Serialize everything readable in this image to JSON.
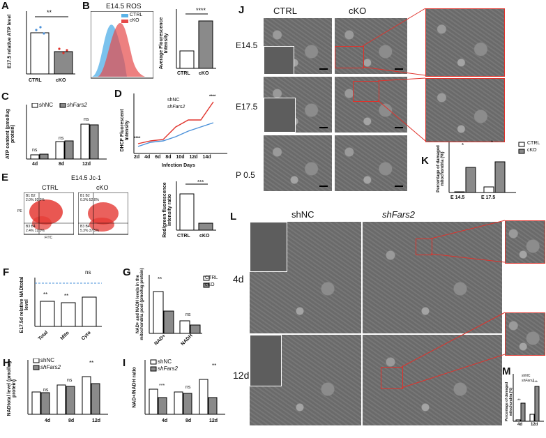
{
  "panels": {
    "A": {
      "label": "A",
      "ylabel": "E17.5 relative ATP level",
      "sig": "**",
      "categories": [
        "CTRL",
        "cKO"
      ],
      "values": [
        2.5,
        1.4
      ]
    },
    "B": {
      "label": "B",
      "title": "E14.5 ROS",
      "legend": [
        "CTRL",
        "cKO"
      ],
      "bar_ylabel": "Average Flourescence Intensity",
      "sig": "****",
      "categories": [
        "CTRL",
        "cKO"
      ]
    },
    "C": {
      "label": "C",
      "legend": [
        "shNC",
        "shFars2"
      ],
      "ylabel": "ATP content (pmol/ug protein)",
      "categories": [
        "4d",
        "8d",
        "12d"
      ],
      "yticks": [
        "0",
        "1",
        "2",
        "3",
        "4"
      ],
      "sig": [
        "ns",
        "ns",
        "ns"
      ]
    },
    "D": {
      "label": "D",
      "legend": [
        "shNC",
        "shFars2"
      ],
      "ylabel": "DHCF Fluorescent Intensity",
      "xlabel": "Infection Days",
      "xticks": [
        "2d",
        "4d",
        "6d",
        "8d",
        "10d",
        "12d",
        "14d"
      ],
      "yticks": [
        "0",
        "500",
        "1000",
        "1500",
        "2000"
      ],
      "sig": [
        "****",
        "**",
        "****",
        "****",
        "**",
        "****"
      ]
    },
    "E": {
      "label": "E",
      "title": "E14.5 Jc-1",
      "subtitles": [
        "CTRL",
        "cKO"
      ],
      "quad_ctrl": [
        "B1",
        "B2",
        "2.0%",
        "92.5%",
        "B3",
        "B4",
        "2.4%",
        "12.0%"
      ],
      "quad_cko": [
        "B1",
        "B2",
        "0.3%",
        "52.0%",
        "B3",
        "B4",
        "5.3%",
        "37.5%"
      ],
      "axis": [
        "PE",
        "FITC"
      ],
      "bar_ylabel": "Red/green fluorescence intensity ratio",
      "sig": "***",
      "categories": [
        "CTRL",
        "cKO"
      ]
    },
    "F": {
      "label": "F",
      "ylabel": "E17.5d relative NADtotal level",
      "categories": [
        "Total",
        "Mito",
        "Cyto"
      ],
      "sig": [
        "**",
        "**",
        "ns"
      ]
    },
    "G": {
      "label": "G",
      "ylabel": "NAD+ and NADH levels in the mitochondria pool (pmol/ug protein)",
      "legend": [
        "CTRL",
        "cKO"
      ],
      "categories": [
        "NAD+",
        "NADH"
      ],
      "sig": [
        "**",
        "ns"
      ]
    },
    "H": {
      "label": "H",
      "ylabel": "NADtotal level (pmol/ug protein)",
      "legend": [
        "shNC",
        "shFars2"
      ],
      "categories": [
        "4d",
        "8d",
        "12d"
      ],
      "sig": [
        "ns",
        "ns",
        "**"
      ]
    },
    "I": {
      "label": "I",
      "ylabel": "NAD+/NADH ratio",
      "legend": [
        "shNC",
        "shFars2"
      ],
      "categories": [
        "4d",
        "8d",
        "12d"
      ],
      "sig": [
        "***",
        "ns",
        "**"
      ]
    },
    "J": {
      "label": "J",
      "cols": [
        "CTRL",
        "cKO"
      ],
      "rows": [
        "E14.5",
        "E17.5",
        "P 0.5"
      ]
    },
    "K": {
      "label": "K",
      "ylabel": "Percentage of damaged mitochondria (%)",
      "legend": [
        "CTRL",
        "cKO"
      ],
      "categories": [
        "E 14.5",
        "E 17.5"
      ],
      "yticks": [
        "0",
        "20",
        "40",
        "60",
        "80"
      ],
      "sig": [
        "*",
        "*"
      ]
    },
    "L": {
      "label": "L",
      "cols": [
        "shNC",
        "shFars2"
      ],
      "rows": [
        "4d",
        "12d"
      ]
    },
    "M": {
      "label": "M",
      "ylabel": "Percentage of damaged mitochondria (%)",
      "legend": [
        "shNC",
        "shFars2"
      ],
      "categories": [
        "4d",
        "12d"
      ],
      "sig": [
        "**",
        "***"
      ]
    }
  },
  "colors": {
    "red": "#e0322b",
    "blue": "#4a90d9",
    "grey": "#8a8a8a",
    "white": "#ffffff"
  }
}
